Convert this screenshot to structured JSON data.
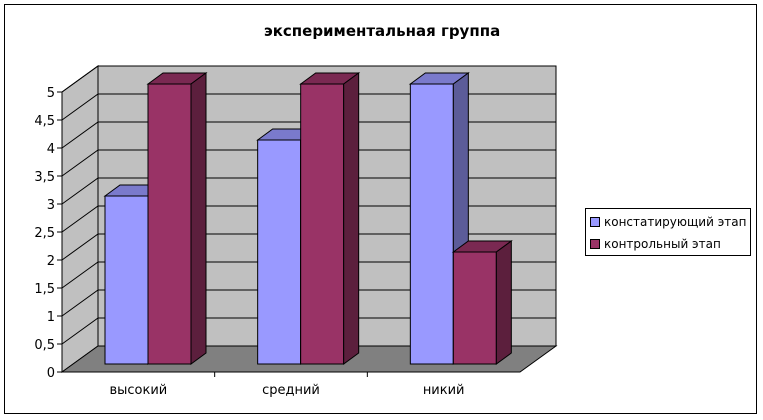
{
  "chart_data": {
    "type": "bar",
    "title": "экспериментальная группа",
    "categories": [
      "высокий",
      "средний",
      "никий"
    ],
    "series": [
      {
        "name": "констатирующий этап",
        "values": [
          3,
          4,
          5
        ],
        "color": "#9999FF",
        "side_color": "#5C5C99",
        "top_color": "#7A7ACC"
      },
      {
        "name": "контрольный этап",
        "values": [
          5,
          5,
          2
        ],
        "color": "#993366",
        "side_color": "#5C1F3D",
        "top_color": "#7A2952"
      }
    ],
    "ylim": [
      0,
      5
    ],
    "yticks": [
      "0",
      "0,5",
      "1",
      "1,5",
      "2",
      "2,5",
      "3",
      "3,5",
      "4",
      "4,5",
      "5"
    ],
    "grid": true,
    "legend_position": "right",
    "wall_color": "#C0C0C0",
    "floor_color": "#808080"
  }
}
